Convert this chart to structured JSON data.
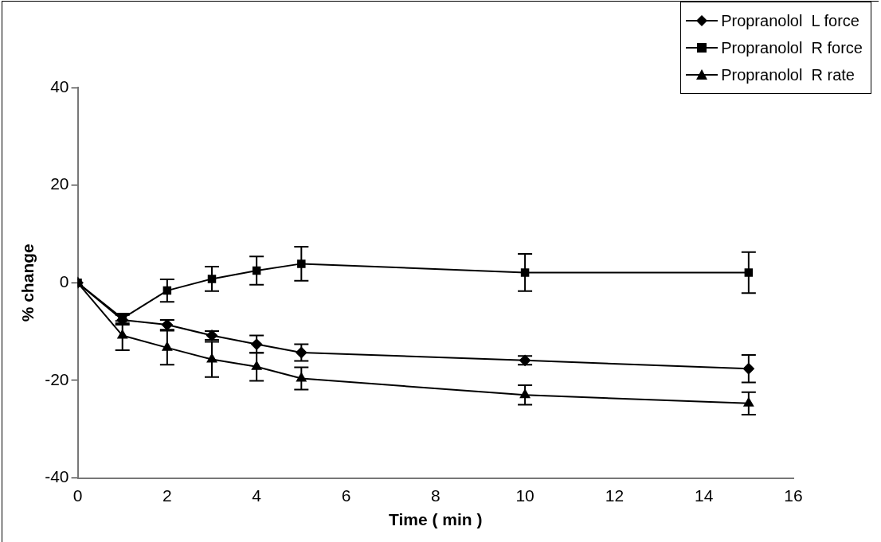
{
  "chart_data": {
    "type": "line",
    "xlabel": "Time ( min )",
    "ylabel": "% change",
    "x": [
      0,
      1,
      2,
      3,
      4,
      5,
      10,
      15
    ],
    "series": [
      {
        "name": "Propranolol  L force",
        "color": "#000000",
        "marker": "diamond",
        "values": [
          0,
          -7.6,
          -8.6,
          -10.8,
          -12.6,
          -14.3,
          -15.9,
          -17.6
        ],
        "errors": [
          null,
          1,
          1,
          0.9,
          1.8,
          1.7,
          0.9,
          2.8
        ]
      },
      {
        "name": "Propranolol  R force",
        "color": "#000000",
        "marker": "square",
        "values": [
          0,
          -7.3,
          -1.6,
          0.8,
          2.5,
          3.9,
          2.1,
          2.1
        ],
        "errors": [
          null,
          1,
          2.3,
          2.5,
          2.9,
          3.5,
          3.8,
          4.2
        ]
      },
      {
        "name": "Propranolol  R rate",
        "color": "#000000",
        "marker": "triangle",
        "values": [
          0,
          -10.8,
          -13.3,
          -15.7,
          -17.2,
          -19.6,
          -23.0,
          -24.7
        ],
        "errors": [
          null,
          3,
          3.5,
          3.6,
          2.9,
          2.3,
          2.0,
          2.3
        ]
      }
    ],
    "xlim": [
      0,
      16
    ],
    "xticks": [
      0,
      2,
      4,
      6,
      8,
      10,
      12,
      14,
      16
    ],
    "ylim": [
      -40,
      40
    ],
    "yticks": [
      -40,
      -20,
      0,
      20,
      40
    ],
    "grid": false,
    "legend": "top right",
    "line_style": "solid"
  }
}
